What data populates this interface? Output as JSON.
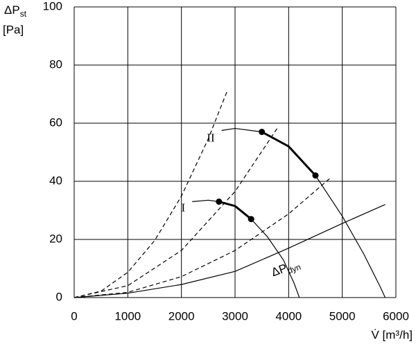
{
  "chart_data": {
    "type": "line",
    "ylabel": {
      "text": "ΔP",
      "sub": "st",
      "unit": "[Pa]"
    },
    "xlabel": "V̇ [m³/h]",
    "xlim": [
      0,
      6000
    ],
    "xticks": [
      0,
      1000,
      2000,
      3000,
      4000,
      5000,
      6000
    ],
    "ylim": [
      0,
      100
    ],
    "yticks": [
      0,
      20,
      40,
      60,
      80,
      100
    ],
    "grid": true,
    "series": [
      {
        "label": "I",
        "color": "#000000",
        "width": 1.2,
        "x": [
          2200,
          2500,
          2700,
          3000,
          3300,
          3600,
          3900,
          4100,
          4200
        ],
        "values": [
          33,
          33.5,
          33,
          31.5,
          27,
          21,
          13,
          5,
          0
        ]
      },
      {
        "color": "#000000",
        "width": 3,
        "end_markers": true,
        "x": [
          2700,
          3000,
          3300
        ],
        "values": [
          33,
          31.5,
          27
        ]
      },
      {
        "label": "II",
        "color": "#000000",
        "width": 1.2,
        "x": [
          2750,
          3000,
          3500,
          4000,
          4500,
          5000,
          5400,
          5700,
          5800
        ],
        "values": [
          57.5,
          58.2,
          57,
          52,
          42,
          28,
          15,
          4,
          0
        ]
      },
      {
        "color": "#000000",
        "width": 3,
        "end_markers": true,
        "x": [
          3500,
          4000,
          4500
        ],
        "values": [
          57,
          52,
          42
        ]
      },
      {
        "color": "#000000",
        "width": 1.2,
        "dashed": true,
        "x": [
          0,
          500,
          1000,
          1500,
          2000,
          2500,
          2850
        ],
        "values": [
          0,
          2.2,
          8.7,
          19.6,
          34.9,
          54.6,
          70.9
        ]
      },
      {
        "color": "#000000",
        "width": 1.2,
        "dashed": true,
        "x": [
          0,
          1000,
          2000,
          3000,
          3800
        ],
        "values": [
          0,
          4.1,
          16.2,
          36.5,
          58.6
        ]
      },
      {
        "color": "#000000",
        "width": 1.2,
        "dashed": true,
        "x": [
          0,
          1000,
          2000,
          3000,
          4000,
          4800
        ],
        "values": [
          0,
          1.8,
          7.2,
          16.2,
          28.8,
          41.5
        ]
      },
      {
        "label": {
          "text": "ΔP",
          "sub": "dyn"
        },
        "color": "#000000",
        "width": 1.2,
        "x": [
          0,
          1000,
          2000,
          3000,
          4000,
          5000,
          5800
        ],
        "values": [
          0,
          1.5,
          4.5,
          9,
          17,
          25.5,
          32
        ]
      }
    ]
  }
}
